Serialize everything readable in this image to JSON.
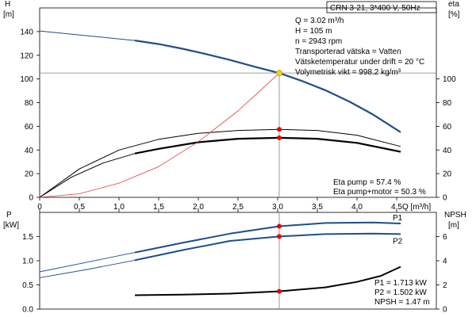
{
  "colors": {
    "curve_blue": "#1f4e8c",
    "curve_black": "#000000",
    "efficiency_line": "#e23b3b",
    "marker_red": "#e60000",
    "marker_yellow": "#f2d21b",
    "gridline": "#808080"
  },
  "header": {
    "title": "CRN 3-21, 3*400 V, 50Hz"
  },
  "info": {
    "lines": [
      "Q = 3.02 m³/h",
      "H = 105 m",
      "n = 2943 rpm",
      "Transporterad vätska = Vatten",
      "Vätsketemperatur under drift = 20 °C",
      "Volymetrisk vikt = 998.2 kg/m³"
    ],
    "eta_lines": [
      "Eta pump = 57.4 %",
      "Eta pump+motor = 50.3 %"
    ],
    "power_lines": [
      "P1 = 1.713 kW",
      "P2 = 1.502 kW",
      "NPSH = 1.47 m"
    ]
  },
  "chart_data": [
    {
      "type": "line",
      "panel": "top",
      "left_axis_label": [
        "H",
        "[m]"
      ],
      "right_axis_label": [
        "eta",
        "[%]"
      ],
      "xlabel": "Q [m³/h]",
      "xlim": [
        0,
        5
      ],
      "ylim": [
        0,
        160
      ],
      "y2lim": [
        0,
        160
      ],
      "x_ticks": [
        "0",
        "0.5",
        "1.0",
        "1.5",
        "2.0",
        "2.5",
        "3.0",
        "3.5",
        "4.0",
        "4.5"
      ],
      "y_ticks": [
        "0",
        "20",
        "40",
        "60",
        "80",
        "100",
        "120",
        "140"
      ],
      "y2_ticks": [
        "0",
        "20",
        "40",
        "60",
        "80",
        "100"
      ],
      "duty_point": {
        "q": 3.02,
        "h": 105
      },
      "series": [
        {
          "role": "H-curve-extended",
          "axis": "H",
          "x": [
            0,
            0.3,
            0.6,
            0.9,
            1.2
          ],
          "y": [
            140.5,
            138.5,
            136.5,
            134.5,
            132.5
          ]
        },
        {
          "role": "H-curve",
          "axis": "H",
          "x": [
            1.2,
            1.5,
            1.8,
            2.1,
            2.4,
            2.7,
            3.02,
            3.3,
            3.6,
            3.9,
            4.2,
            4.55
          ],
          "y": [
            132.5,
            129.5,
            125.5,
            121,
            116,
            110.5,
            105,
            98.5,
            90.5,
            81,
            70,
            55
          ]
        },
        {
          "role": "eta-pump",
          "axis": "eta",
          "x": [
            0,
            0.5,
            1.0,
            1.5,
            2.0,
            2.5,
            3.02,
            3.5,
            4.0,
            4.55
          ],
          "y": [
            0,
            24,
            40,
            49,
            54,
            56.5,
            57.4,
            56.5,
            52.5,
            43
          ]
        },
        {
          "role": "eta-pump-motor-extended",
          "axis": "eta",
          "x": [
            0,
            0.4,
            0.8,
            1.2
          ],
          "y": [
            0,
            17,
            29,
            37
          ]
        },
        {
          "role": "eta-pump-motor",
          "axis": "eta",
          "x": [
            1.2,
            1.5,
            2.0,
            2.5,
            3.02,
            3.5,
            4.0,
            4.55
          ],
          "y": [
            37,
            41,
            46.5,
            49.5,
            50.3,
            49.5,
            46,
            38.5
          ]
        },
        {
          "role": "system-curve",
          "axis": "H",
          "x": [
            0,
            0.5,
            1.0,
            1.5,
            2.0,
            2.5,
            3.02
          ],
          "y": [
            0,
            3,
            12,
            26,
            47,
            73,
            105
          ]
        }
      ],
      "markers": [
        {
          "series": "H-curve",
          "x": 3.02,
          "y": 105,
          "color": "yellow"
        },
        {
          "series": "eta-pump",
          "x": 3.02,
          "y": 57.4,
          "color": "red"
        },
        {
          "series": "eta-pump-motor",
          "x": 3.02,
          "y": 50.3,
          "color": "red"
        }
      ]
    },
    {
      "type": "line",
      "panel": "bottom",
      "left_axis_label": [
        "P",
        "[kW]"
      ],
      "right_axis_label": [
        "NPSH",
        "[m]"
      ],
      "xlim": [
        0,
        5
      ],
      "ylim": [
        0,
        2.0
      ],
      "y2lim": [
        0,
        8
      ],
      "y_ticks": [
        "0.0",
        "0.5",
        "1.0",
        "1.5"
      ],
      "y2_ticks": [
        "0",
        "2",
        "4",
        "6"
      ],
      "series": [
        {
          "name": "P1",
          "axis": "P",
          "x": [
            -0.5,
            0,
            0.6,
            1.2
          ],
          "y": [
            0.68,
            0.77,
            0.97,
            1.17
          ]
        },
        {
          "name": "P1",
          "axis": "P",
          "x": [
            1.2,
            1.8,
            2.4,
            3.02,
            3.6,
            4.2,
            4.55
          ],
          "y": [
            1.17,
            1.37,
            1.56,
            1.713,
            1.78,
            1.79,
            1.77
          ]
        },
        {
          "name": "P2",
          "axis": "P",
          "x": [
            -0.5,
            0,
            0.6,
            1.2
          ],
          "y": [
            0.58,
            0.65,
            0.82,
            1.01
          ]
        },
        {
          "name": "P2",
          "axis": "P",
          "x": [
            1.2,
            1.8,
            2.4,
            3.02,
            3.6,
            4.2,
            4.55
          ],
          "y": [
            1.01,
            1.22,
            1.41,
            1.502,
            1.55,
            1.56,
            1.55
          ]
        },
        {
          "role": "NPSH",
          "axis": "NPSH",
          "x": [
            1.2,
            1.8,
            2.4,
            3.02,
            3.6,
            4.0,
            4.3,
            4.55
          ],
          "y": [
            1.15,
            1.2,
            1.28,
            1.47,
            1.8,
            2.25,
            2.75,
            3.5
          ]
        }
      ],
      "markers": [
        {
          "series": "P1",
          "x": 3.02,
          "y": 1.713,
          "color": "red"
        },
        {
          "series": "P2",
          "x": 3.02,
          "y": 1.502,
          "color": "red"
        },
        {
          "series": "NPSH",
          "x": 3.02,
          "y": 1.47,
          "color": "red"
        }
      ]
    }
  ]
}
